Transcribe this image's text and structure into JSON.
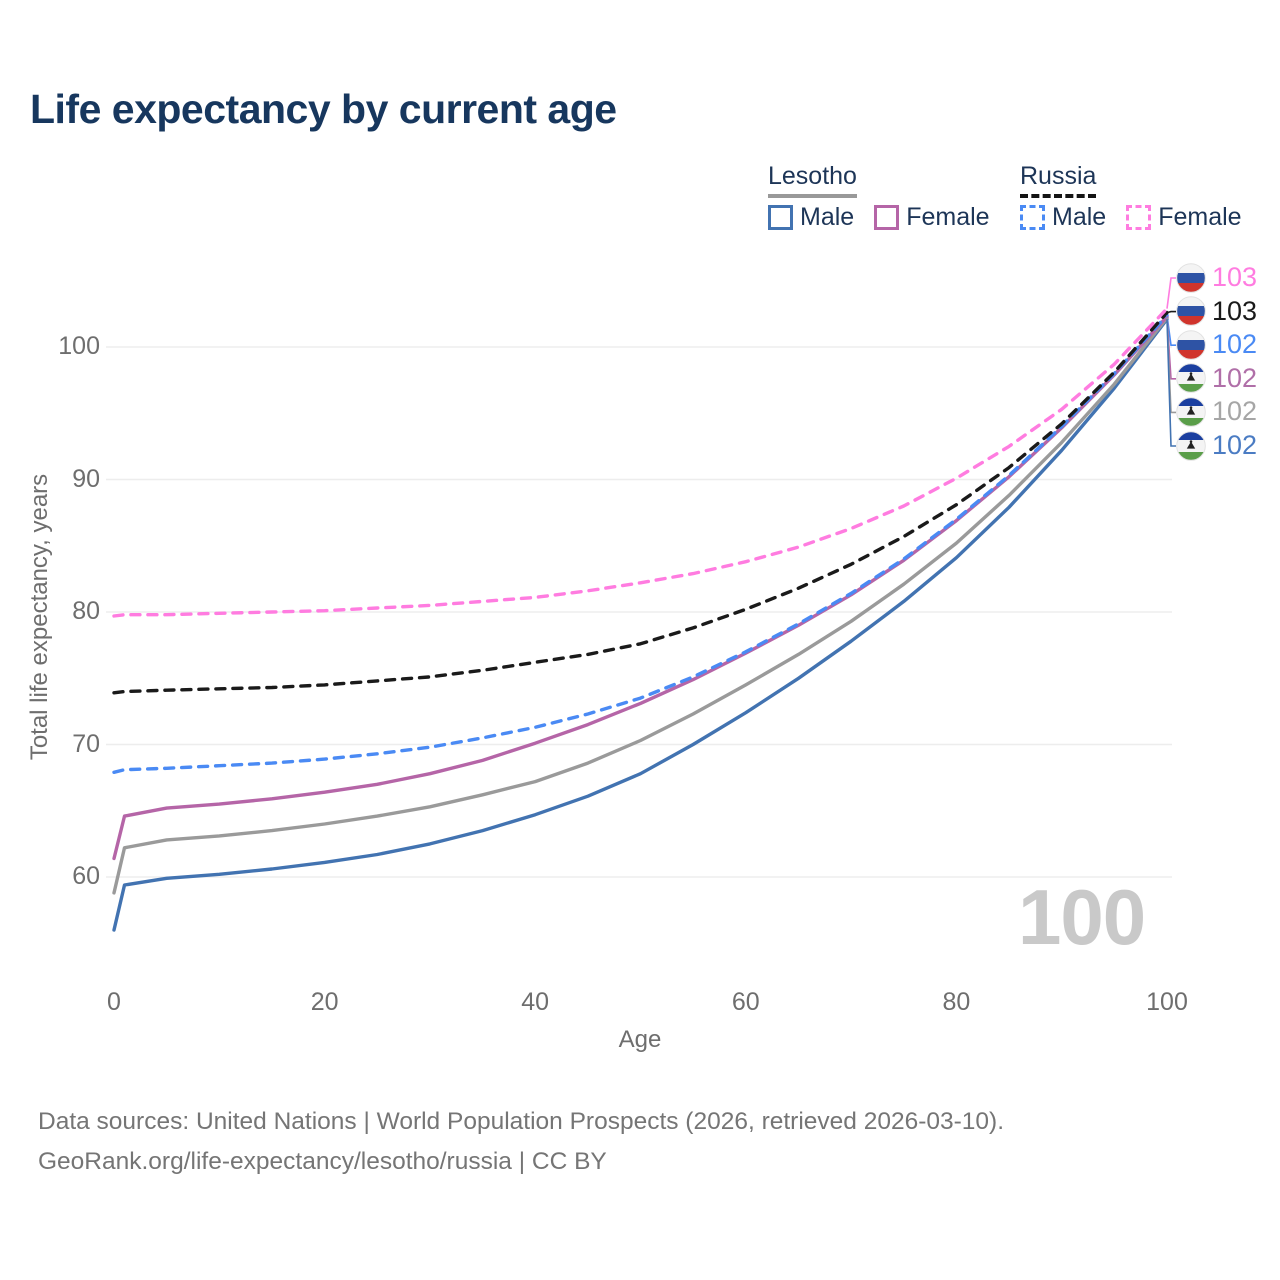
{
  "page": {
    "title": "Life expectancy by current age"
  },
  "legend": {
    "groups": [
      {
        "country": "Lesotho",
        "line_style": "solid",
        "items": [
          {
            "label": "Male",
            "color": "#4273b1",
            "dashed": false
          },
          {
            "label": "Female",
            "color": "#b565a7",
            "dashed": false
          }
        ]
      },
      {
        "country": "Russia",
        "line_style": "dashed",
        "items": [
          {
            "label": "Male",
            "color": "#4a8af4",
            "dashed": true
          },
          {
            "label": "Female",
            "color": "#ff7ce0",
            "dashed": true
          }
        ]
      }
    ]
  },
  "axes": {
    "y_title": "Total life expectancy, years",
    "x_title": "Age",
    "y_ticks": [
      60,
      70,
      80,
      90,
      100
    ],
    "x_ticks": [
      0,
      20,
      40,
      60,
      80,
      100
    ]
  },
  "watermark": "100",
  "chart_data": {
    "type": "line",
    "title": "Life expectancy by current age",
    "xlabel": "Age",
    "ylabel": "Total life expectancy, years",
    "xlim": [
      0,
      100
    ],
    "ylim": [
      55,
      104
    ],
    "grid": "horizontal",
    "legend_position": "top-right",
    "x": [
      0,
      1,
      5,
      10,
      15,
      20,
      25,
      30,
      35,
      40,
      45,
      50,
      55,
      60,
      65,
      70,
      75,
      80,
      85,
      90,
      95,
      100
    ],
    "series": [
      {
        "name": "Lesotho Male",
        "country": "Lesotho",
        "sex": "Male",
        "color": "#4273b1",
        "dashed": false,
        "values": [
          56.0,
          59.4,
          59.9,
          60.2,
          60.6,
          61.1,
          61.7,
          62.5,
          63.5,
          64.7,
          66.1,
          67.8,
          70.0,
          72.4,
          75.0,
          77.8,
          80.8,
          84.1,
          87.9,
          92.2,
          96.9,
          102.1
        ]
      },
      {
        "name": "Lesotho Total",
        "country": "Lesotho",
        "sex": "Total",
        "color": "#9a9a9a",
        "dashed": false,
        "values": [
          58.8,
          62.2,
          62.8,
          63.1,
          63.5,
          64.0,
          64.6,
          65.3,
          66.2,
          67.2,
          68.6,
          70.3,
          72.3,
          74.5,
          76.8,
          79.3,
          82.1,
          85.2,
          88.8,
          92.8,
          97.2,
          102.2
        ]
      },
      {
        "name": "Lesotho Female",
        "country": "Lesotho",
        "sex": "Female",
        "color": "#b565a7",
        "dashed": false,
        "values": [
          61.4,
          64.6,
          65.2,
          65.5,
          65.9,
          66.4,
          67.0,
          67.8,
          68.8,
          70.1,
          71.5,
          73.1,
          74.9,
          76.9,
          79.0,
          81.3,
          83.9,
          86.9,
          90.2,
          93.9,
          97.9,
          102.3
        ]
      },
      {
        "name": "Russia Male",
        "country": "Russia",
        "sex": "Male",
        "color": "#4a8af4",
        "dashed": true,
        "values": [
          67.9,
          68.1,
          68.2,
          68.4,
          68.6,
          68.9,
          69.3,
          69.8,
          70.5,
          71.3,
          72.3,
          73.5,
          75.1,
          77.0,
          79.1,
          81.4,
          84.0,
          87.0,
          90.3,
          94.0,
          98.0,
          102.4
        ]
      },
      {
        "name": "Russia Total",
        "country": "Russia",
        "sex": "Total",
        "color": "#1a1a1a",
        "dashed": true,
        "values": [
          73.9,
          74.0,
          74.1,
          74.2,
          74.3,
          74.5,
          74.8,
          75.1,
          75.6,
          76.2,
          76.8,
          77.6,
          78.8,
          80.2,
          81.8,
          83.6,
          85.7,
          88.1,
          90.9,
          94.2,
          98.1,
          102.6
        ]
      },
      {
        "name": "Russia Female",
        "country": "Russia",
        "sex": "Female",
        "color": "#ff7ce0",
        "dashed": true,
        "values": [
          79.7,
          79.8,
          79.8,
          79.9,
          80.0,
          80.1,
          80.3,
          80.5,
          80.8,
          81.1,
          81.6,
          82.2,
          82.9,
          83.8,
          84.9,
          86.3,
          88.0,
          90.1,
          92.5,
          95.3,
          98.7,
          102.9
        ]
      }
    ],
    "end_labels": [
      {
        "series_index": 5,
        "value": "103",
        "flag": "russia",
        "text_color": "#ff7ce0"
      },
      {
        "series_index": 4,
        "value": "103",
        "flag": "russia",
        "text_color": "#1a1a1a"
      },
      {
        "series_index": 3,
        "value": "102",
        "flag": "russia",
        "text_color": "#4a8af4"
      },
      {
        "series_index": 2,
        "value": "102",
        "flag": "lesotho",
        "text_color": "#b06fa8"
      },
      {
        "series_index": 1,
        "value": "102",
        "flag": "lesotho",
        "text_color": "#a6a6a6"
      },
      {
        "series_index": 0,
        "value": "102",
        "flag": "lesotho",
        "text_color": "#4b7cc3"
      }
    ],
    "flag_colors": {
      "russia": {
        "top": "#f4f4f4",
        "mid": "#2e53a5",
        "bottom": "#d0342c"
      },
      "lesotho": {
        "top": "#1b3fa0",
        "mid": "#f4f4f4",
        "bottom": "#5a9e49",
        "emblem": "#222222"
      }
    }
  },
  "footer": {
    "line1": "Data sources: United Nations | World Population Prospects (2026, retrieved 2026-03-10).",
    "line2": "GeoRank.org/life-expectancy/lesotho/russia | CC BY"
  }
}
